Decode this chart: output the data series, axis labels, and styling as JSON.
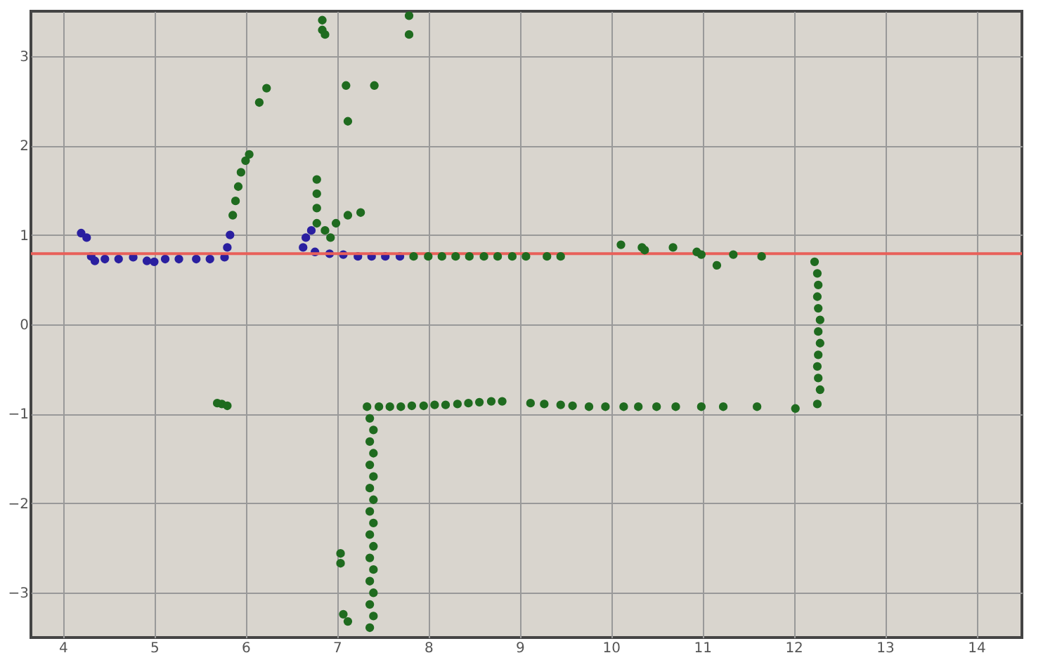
{
  "chart_data": {
    "type": "scatter",
    "xlim": [
      3.65,
      14.5
    ],
    "ylim": [
      -3.5,
      3.5
    ],
    "xticks": [
      4,
      5,
      6,
      7,
      8,
      9,
      10,
      11,
      12,
      13,
      14
    ],
    "yticks": [
      -3,
      -2,
      -1,
      0,
      1,
      2,
      3
    ],
    "grid": true,
    "marker": "circle",
    "ref_lines": [
      {
        "axis": "y",
        "value": 0.79,
        "color": "#e8605a"
      }
    ],
    "series": [
      {
        "color": "#2a1fa0",
        "x": [
          4.2,
          4.26,
          4.31,
          4.35,
          4.46,
          4.61,
          4.77,
          4.92,
          5.0,
          5.12,
          5.27,
          5.46,
          5.61,
          5.77,
          5.8,
          5.83,
          6.63,
          6.66,
          6.72,
          6.76,
          6.92,
          7.07,
          7.23,
          7.38,
          7.53,
          7.69
        ],
        "values": [
          1.02,
          0.97,
          0.76,
          0.71,
          0.73,
          0.73,
          0.75,
          0.71,
          0.7,
          0.73,
          0.73,
          0.73,
          0.73,
          0.75,
          0.86,
          1.0,
          0.86,
          0.97,
          1.05,
          0.81,
          0.79,
          0.78,
          0.76,
          0.76,
          0.76,
          0.76
        ]
      },
      {
        "color": "#1f6b1f",
        "x": [
          5.86,
          5.89,
          5.92,
          5.95,
          6.0,
          6.04,
          6.15,
          6.23,
          6.84,
          6.84,
          6.87,
          7.79,
          7.79,
          7.1,
          7.41,
          7.12,
          6.78,
          6.78,
          6.78,
          6.78,
          6.87,
          6.99,
          7.12,
          7.26,
          6.93,
          7.84,
          8.0,
          8.15,
          8.3,
          8.45,
          8.61,
          8.76,
          8.92,
          9.07,
          9.3,
          9.45,
          10.11,
          10.34,
          10.37,
          10.68,
          10.94,
          10.99,
          11.16,
          11.34,
          11.65,
          12.23,
          12.26,
          12.27,
          12.26,
          12.27,
          12.29,
          12.27,
          12.29,
          12.27,
          12.26,
          12.27,
          12.29,
          12.26,
          7.33,
          7.46,
          7.58,
          7.7,
          7.82,
          7.95,
          8.07,
          8.19,
          8.32,
          8.44,
          8.56,
          8.69,
          8.81,
          9.12,
          9.27,
          9.45,
          9.58,
          9.76,
          9.94,
          10.14,
          10.3,
          10.5,
          10.71,
          10.99,
          11.23,
          11.6,
          12.02,
          7.36,
          7.4,
          7.36,
          7.4,
          7.36,
          7.4,
          7.36,
          7.4,
          7.36,
          7.4,
          7.36,
          7.4,
          7.36,
          7.4,
          7.36,
          7.4,
          7.36,
          7.4,
          7.36,
          7.04,
          7.04,
          7.07,
          7.12,
          5.74,
          5.69,
          5.8
        ],
        "values": [
          1.22,
          1.38,
          1.54,
          1.7,
          1.83,
          1.9,
          2.48,
          2.64,
          3.4,
          3.29,
          3.24,
          3.45,
          3.24,
          2.67,
          2.67,
          2.27,
          1.62,
          1.46,
          1.3,
          1.13,
          1.05,
          1.13,
          1.22,
          1.25,
          0.97,
          0.76,
          0.76,
          0.76,
          0.76,
          0.76,
          0.76,
          0.76,
          0.76,
          0.76,
          0.76,
          0.76,
          0.89,
          0.86,
          0.83,
          0.86,
          0.81,
          0.78,
          0.66,
          0.78,
          0.76,
          0.7,
          0.57,
          0.44,
          0.31,
          0.18,
          0.05,
          -0.08,
          -0.21,
          -0.34,
          -0.47,
          -0.6,
          -0.73,
          -0.89,
          -0.92,
          -0.92,
          -0.92,
          -0.92,
          -0.91,
          -0.91,
          -0.9,
          -0.9,
          -0.89,
          -0.88,
          -0.87,
          -0.86,
          -0.86,
          -0.88,
          -0.89,
          -0.9,
          -0.91,
          -0.92,
          -0.92,
          -0.92,
          -0.92,
          -0.92,
          -0.92,
          -0.92,
          -0.92,
          -0.92,
          -0.94,
          -1.05,
          -1.18,
          -1.31,
          -1.44,
          -1.57,
          -1.7,
          -1.83,
          -1.96,
          -2.09,
          -2.22,
          -2.35,
          -2.48,
          -2.61,
          -2.74,
          -2.87,
          -3.0,
          -3.13,
          -3.26,
          -3.39,
          -2.56,
          -2.67,
          -3.24,
          -3.32,
          -0.89,
          -0.88,
          -0.91
        ]
      }
    ]
  }
}
